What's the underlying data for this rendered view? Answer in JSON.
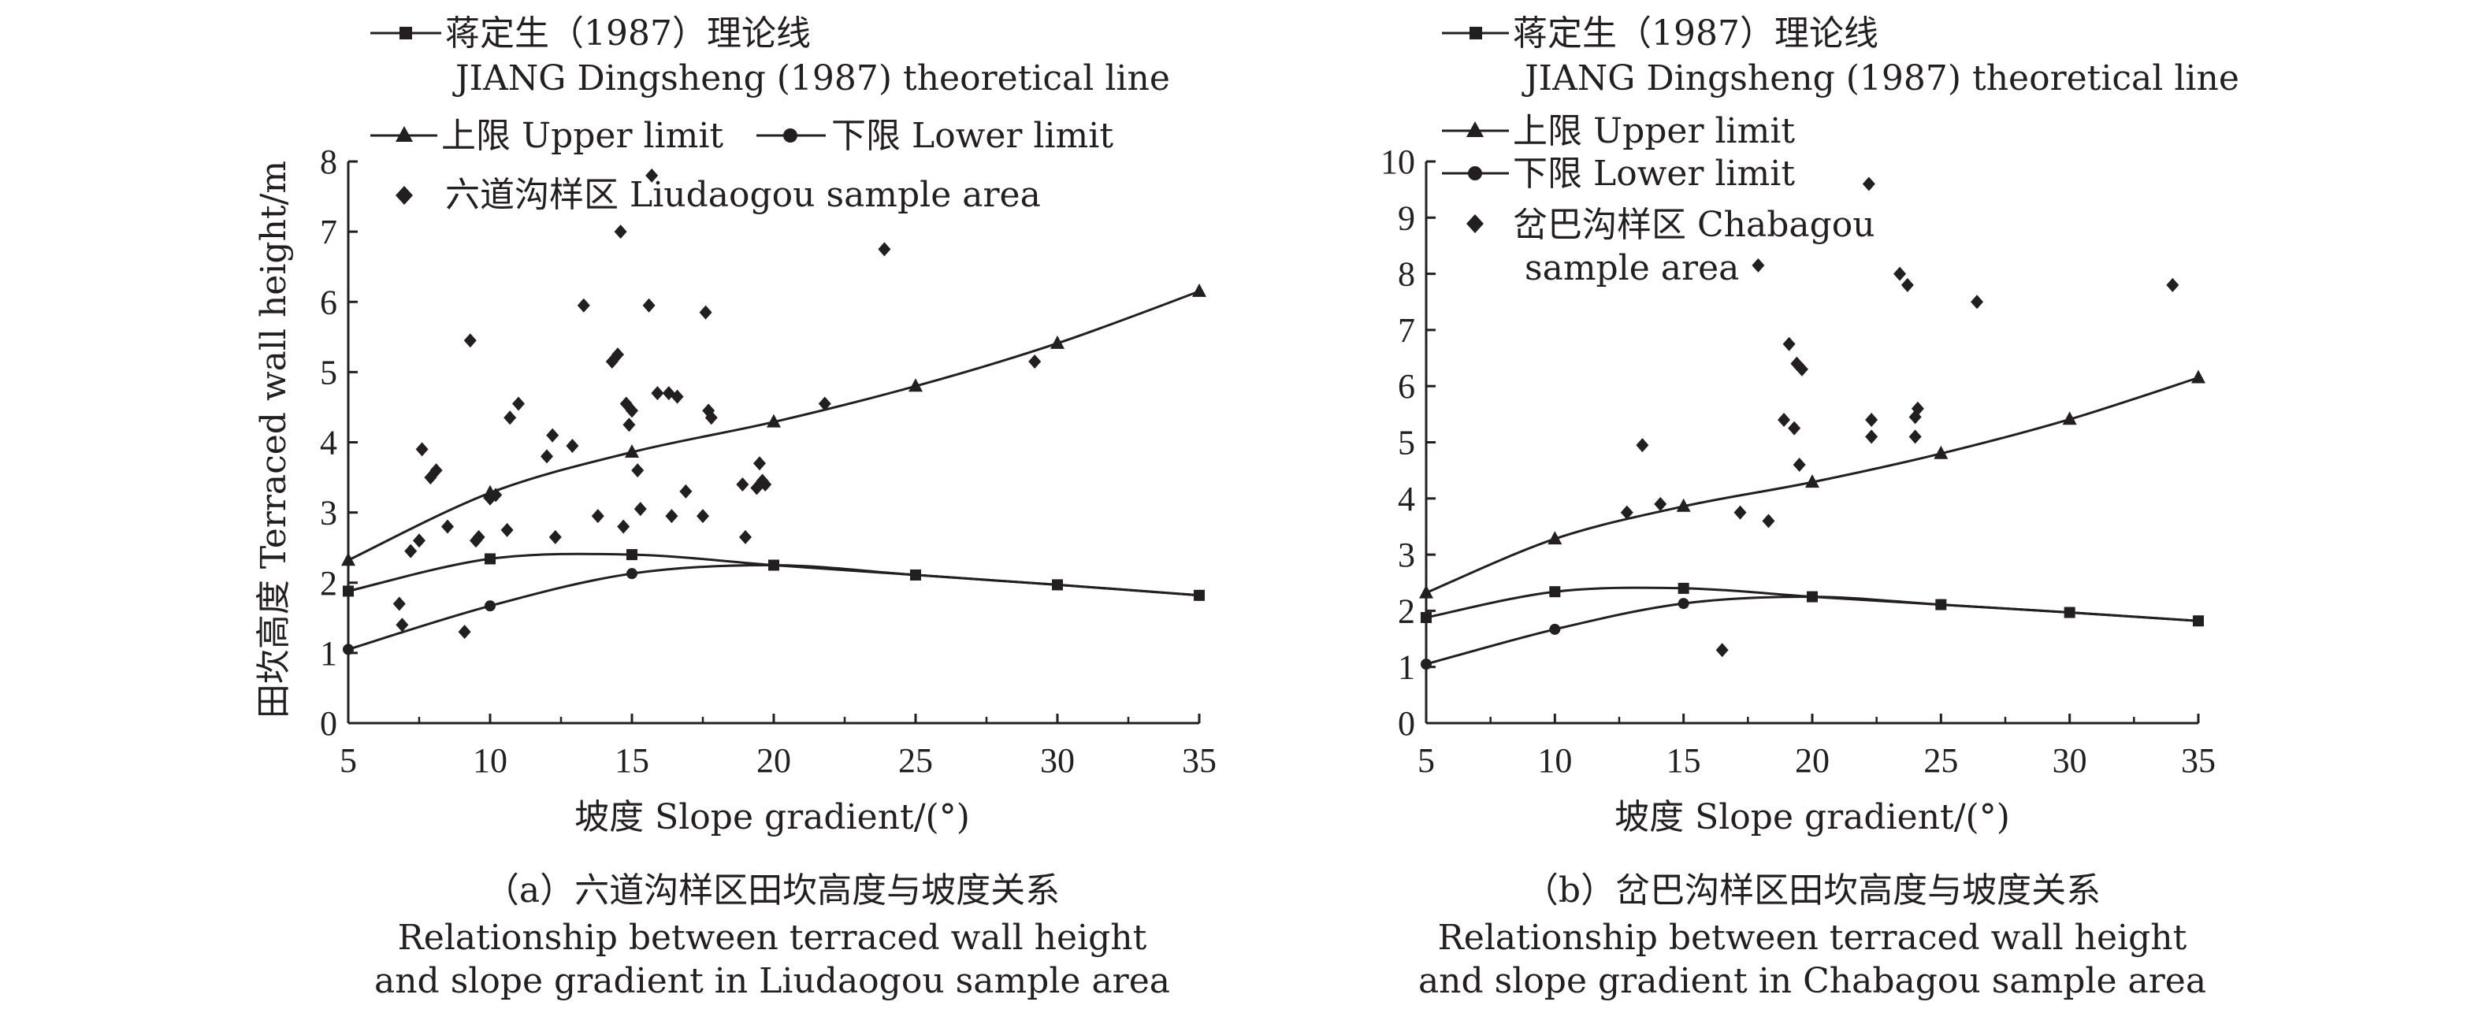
{
  "chart_data": [
    {
      "type": "scatter",
      "panel_caption": "（a）六道沟样区田坎高度与坡度关系",
      "caption_en_line1": "Relationship between terraced wall height",
      "caption_en_line2": "and slope gradient in Liudaogou sample area",
      "xlabel": "坡度 Slope gradient/(°)",
      "ylabel": "田坎高度 Terraced wall height/m",
      "xlim": [
        5,
        35
      ],
      "ylim": [
        0,
        8
      ],
      "xticks": [
        5,
        10,
        15,
        20,
        25,
        30,
        35
      ],
      "yticks": [
        0,
        1,
        2,
        3,
        4,
        5,
        6,
        7,
        8
      ],
      "legend_layout": "wide",
      "legend": {
        "theory_zh": "蒋定生（1987）理论线",
        "theory_en": "JIANG Dingsheng (1987) theoretical line",
        "upper": "上限 Upper limit",
        "lower": "下限 Lower limit",
        "sample_line1": "六道沟样区 Liudaogou sample area",
        "sample_line2": ""
      },
      "series": [
        {
          "name": "蒋定生（1987）理论线",
          "marker": "square",
          "x": [
            5,
            10,
            15,
            20,
            25,
            30,
            35
          ],
          "y": [
            1.88,
            2.34,
            2.4,
            2.25,
            2.11,
            1.97,
            1.82
          ]
        },
        {
          "name": "上限 Upper limit",
          "marker": "triangle",
          "x": [
            5,
            10,
            15,
            20,
            25,
            30,
            35
          ],
          "y": [
            2.32,
            3.28,
            3.86,
            4.29,
            4.8,
            5.41,
            6.15
          ]
        },
        {
          "name": "下限 Lower limit",
          "marker": "circle",
          "x": [
            5,
            10,
            15,
            20,
            25,
            30,
            35
          ],
          "y": [
            1.05,
            1.67,
            2.13,
            2.25,
            2.11,
            1.97,
            1.82
          ]
        }
      ],
      "scatter": {
        "name": "六道沟样区 Liudaogou sample area",
        "points": [
          [
            6.8,
            1.7
          ],
          [
            6.9,
            1.4
          ],
          [
            7.2,
            2.45
          ],
          [
            7.5,
            2.6
          ],
          [
            7.6,
            3.9
          ],
          [
            7.9,
            3.5
          ],
          [
            8.1,
            3.6
          ],
          [
            8.5,
            2.8
          ],
          [
            9.1,
            1.3
          ],
          [
            9.3,
            5.45
          ],
          [
            9.5,
            2.6
          ],
          [
            9.6,
            2.65
          ],
          [
            10.0,
            3.2
          ],
          [
            10.2,
            3.25
          ],
          [
            10.6,
            2.75
          ],
          [
            10.7,
            4.35
          ],
          [
            11.0,
            4.55
          ],
          [
            12.0,
            3.8
          ],
          [
            12.2,
            4.1
          ],
          [
            12.3,
            2.65
          ],
          [
            12.9,
            3.95
          ],
          [
            13.3,
            5.95
          ],
          [
            13.8,
            2.95
          ],
          [
            14.3,
            5.15
          ],
          [
            14.5,
            5.25
          ],
          [
            14.6,
            7.0
          ],
          [
            14.7,
            2.8
          ],
          [
            14.8,
            4.55
          ],
          [
            14.9,
            4.25
          ],
          [
            15.0,
            4.45
          ],
          [
            15.2,
            3.6
          ],
          [
            15.3,
            3.05
          ],
          [
            15.6,
            5.95
          ],
          [
            15.7,
            7.8
          ],
          [
            15.9,
            4.7
          ],
          [
            16.3,
            4.7
          ],
          [
            16.4,
            2.95
          ],
          [
            16.6,
            4.65
          ],
          [
            16.9,
            3.3
          ],
          [
            17.5,
            2.95
          ],
          [
            17.6,
            5.85
          ],
          [
            17.7,
            4.45
          ],
          [
            17.8,
            4.35
          ],
          [
            18.9,
            3.4
          ],
          [
            19.0,
            2.65
          ],
          [
            19.4,
            3.35
          ],
          [
            19.5,
            3.7
          ],
          [
            19.6,
            3.45
          ],
          [
            19.7,
            3.4
          ],
          [
            21.8,
            4.55
          ],
          [
            23.9,
            6.75
          ],
          [
            29.2,
            5.15
          ]
        ]
      }
    },
    {
      "type": "scatter",
      "panel_caption": "（b）岔巴沟样区田坎高度与坡度关系",
      "caption_en_line1": "Relationship between terraced wall height",
      "caption_en_line2": "and slope gradient in Chabagou sample area",
      "xlabel": "坡度 Slope gradient/(°)",
      "ylabel": "",
      "xlim": [
        5,
        35
      ],
      "ylim": [
        0,
        10
      ],
      "xticks": [
        5,
        10,
        15,
        20,
        25,
        30,
        35
      ],
      "yticks": [
        0,
        1,
        2,
        3,
        4,
        5,
        6,
        7,
        8,
        9,
        10
      ],
      "legend_layout": "stacked",
      "legend": {
        "theory_zh": "蒋定生（1987）理论线",
        "theory_en": "JIANG Dingsheng (1987) theoretical line",
        "upper": "上限 Upper limit",
        "lower": "下限 Lower limit",
        "sample_line1": "岔巴沟样区 Chabagou",
        "sample_line2": "sample area"
      },
      "series": [
        {
          "name": "蒋定生（1987）理论线",
          "marker": "square",
          "x": [
            5,
            10,
            15,
            20,
            25,
            30,
            35
          ],
          "y": [
            1.88,
            2.34,
            2.4,
            2.25,
            2.11,
            1.97,
            1.82
          ]
        },
        {
          "name": "上限 Upper limit",
          "marker": "triangle",
          "x": [
            5,
            10,
            15,
            20,
            25,
            30,
            35
          ],
          "y": [
            2.32,
            3.28,
            3.86,
            4.29,
            4.8,
            5.41,
            6.15
          ]
        },
        {
          "name": "下限 Lower limit",
          "marker": "circle",
          "x": [
            5,
            10,
            15,
            20,
            25,
            30,
            35
          ],
          "y": [
            1.05,
            1.67,
            2.13,
            2.25,
            2.11,
            1.97,
            1.82
          ]
        }
      ],
      "scatter": {
        "name": "岔巴沟样区 Chabagou sample area",
        "points": [
          [
            12.8,
            3.75
          ],
          [
            13.4,
            4.95
          ],
          [
            14.1,
            3.9
          ],
          [
            16.5,
            1.3
          ],
          [
            17.2,
            3.75
          ],
          [
            17.9,
            8.15
          ],
          [
            18.3,
            3.6
          ],
          [
            18.9,
            5.4
          ],
          [
            19.1,
            6.75
          ],
          [
            19.3,
            5.25
          ],
          [
            19.4,
            6.4
          ],
          [
            19.5,
            4.6
          ],
          [
            19.6,
            6.3
          ],
          [
            22.2,
            9.6
          ],
          [
            22.3,
            5.1
          ],
          [
            22.3,
            5.4
          ],
          [
            23.4,
            8.0
          ],
          [
            23.7,
            7.8
          ],
          [
            24.0,
            5.1
          ],
          [
            24.0,
            5.45
          ],
          [
            24.1,
            5.6
          ],
          [
            26.4,
            7.5
          ],
          [
            34.0,
            7.8
          ]
        ]
      }
    }
  ]
}
